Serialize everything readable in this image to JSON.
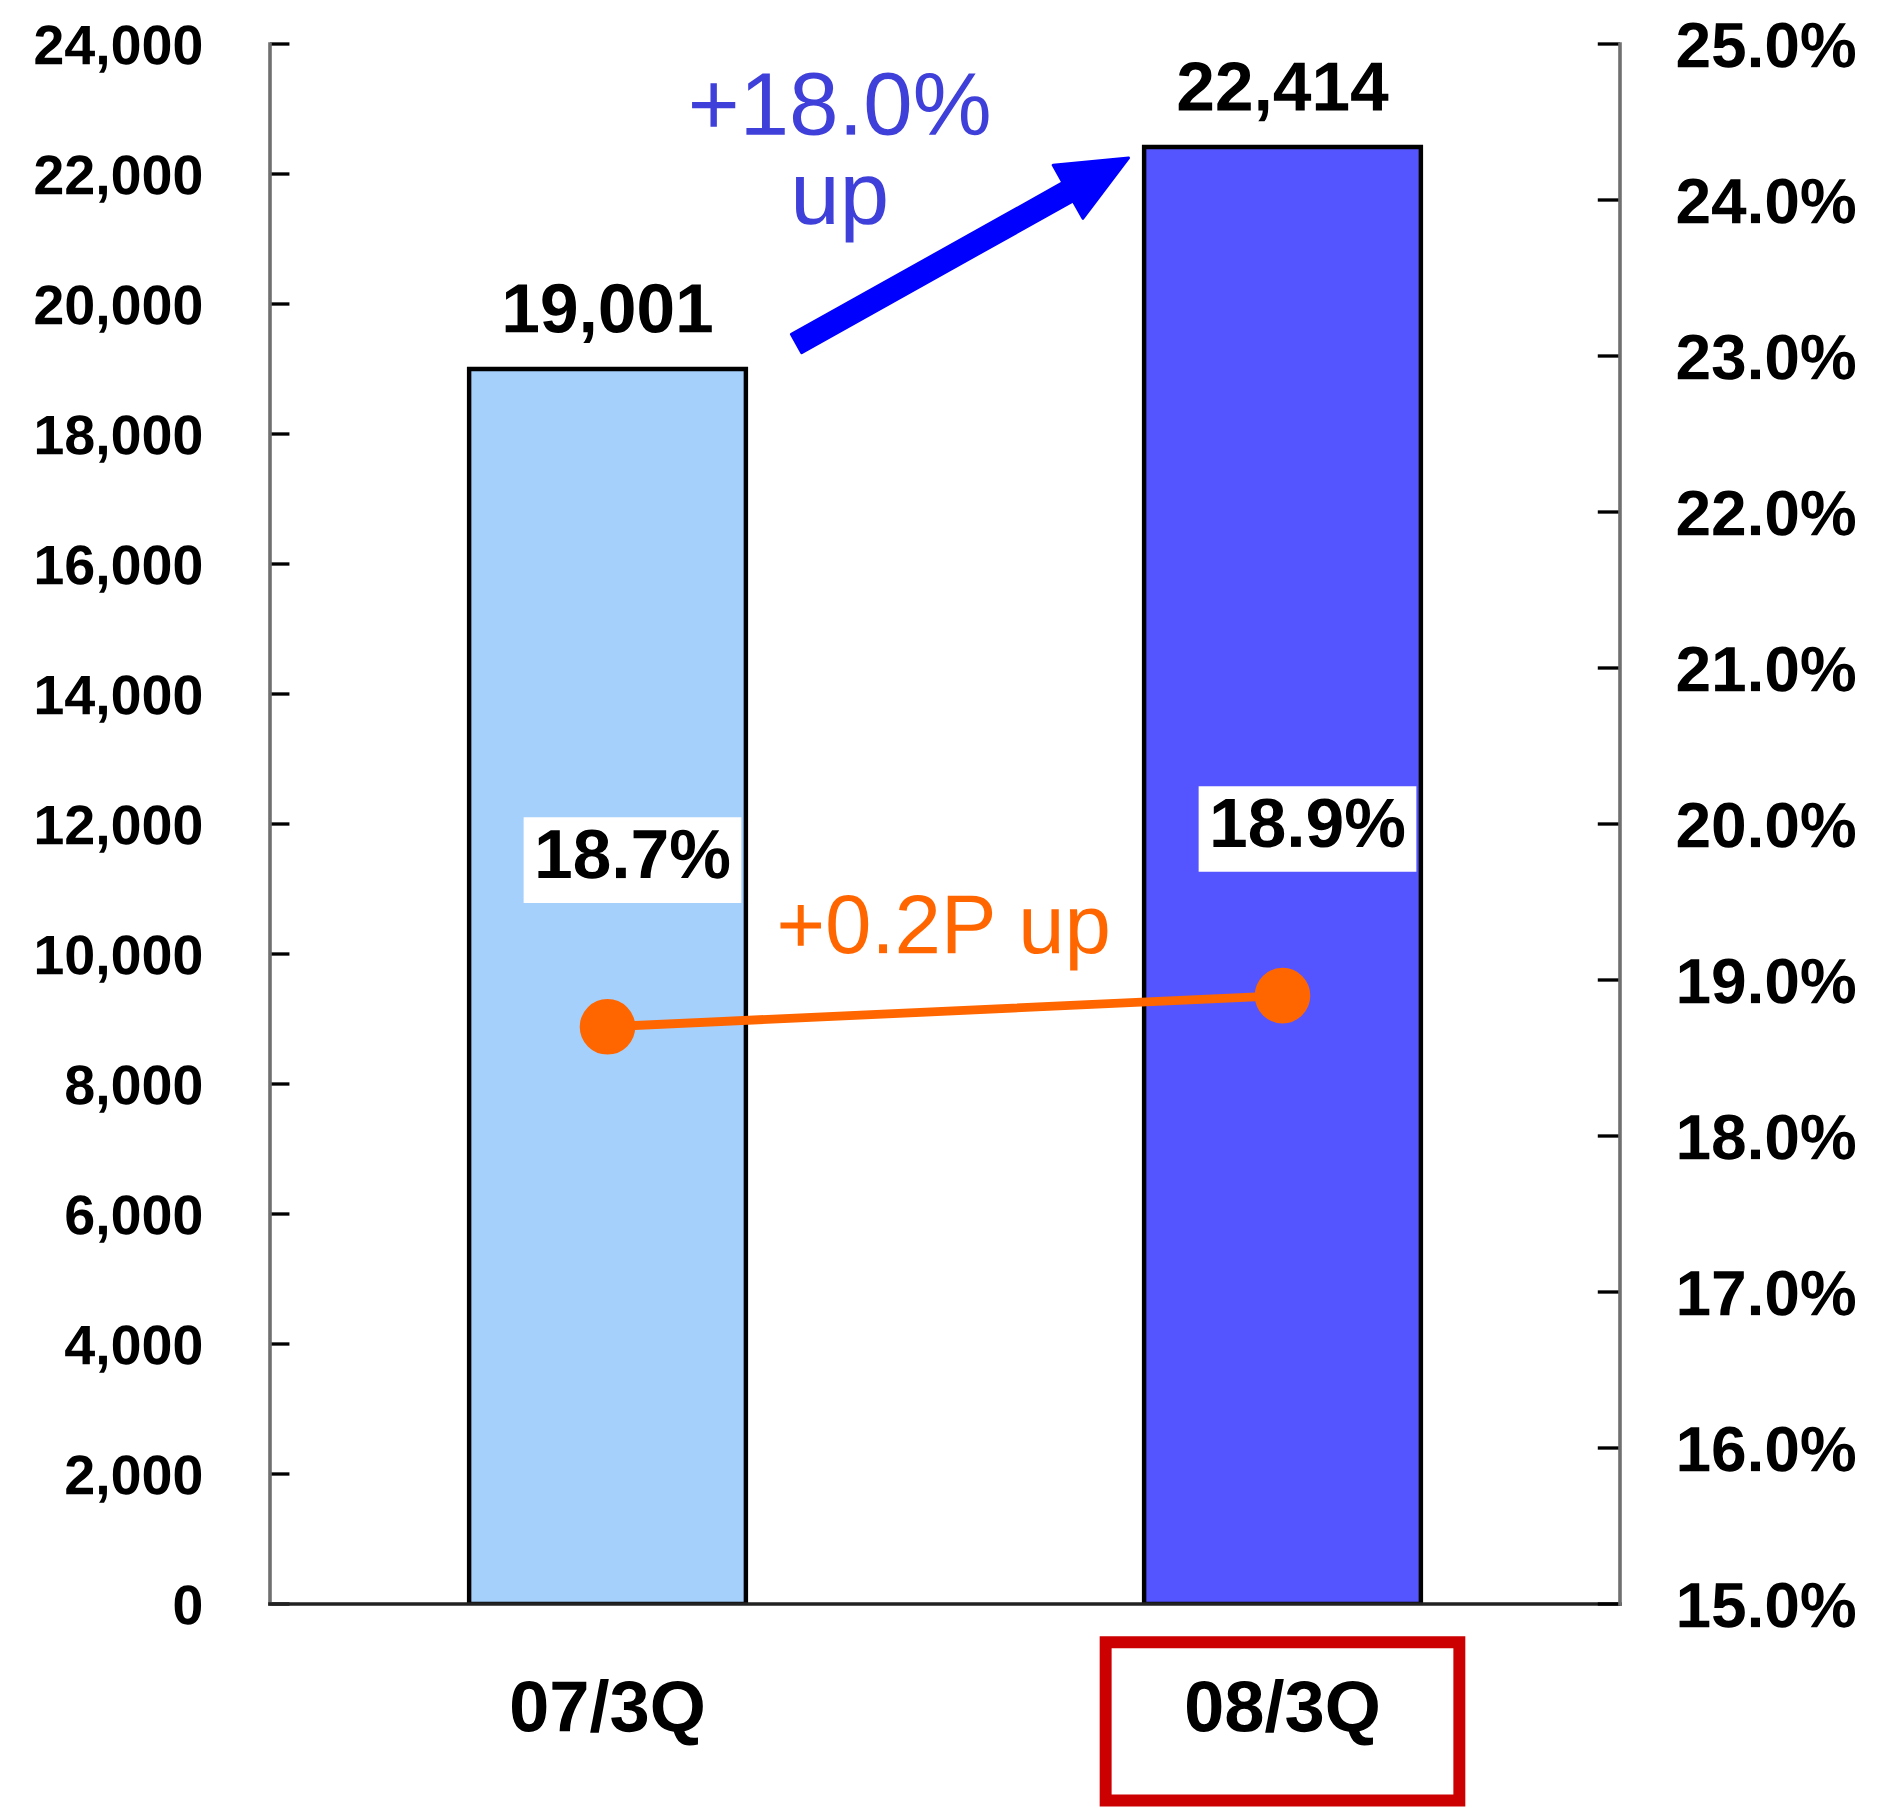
{
  "chart_data": {
    "type": "bar",
    "categories": [
      "07/3Q",
      "08/3Q"
    ],
    "series": [
      {
        "colors": [
          "#a6d0fc",
          "#5555ff"
        ],
        "values": [
          19001,
          22414
        ],
        "value_labels": [
          "19,001",
          "22,414"
        ]
      },
      {
        "type": "line",
        "axis": "y2",
        "color": "#ff6600",
        "marker": "circle",
        "line_style": "solid",
        "values": [
          18.7,
          18.9
        ],
        "value_labels": [
          "18.7%",
          "18.9%"
        ]
      }
    ],
    "ylim": [
      0,
      24000
    ],
    "yticks": [
      {
        "value": 0,
        "label": "0"
      },
      {
        "value": 2000,
        "label": "2,000"
      },
      {
        "value": 4000,
        "label": "4,000"
      },
      {
        "value": 6000,
        "label": "6,000"
      },
      {
        "value": 8000,
        "label": "8,000"
      },
      {
        "value": 10000,
        "label": "10,000"
      },
      {
        "value": 12000,
        "label": "12,000"
      },
      {
        "value": 14000,
        "label": "14,000"
      },
      {
        "value": 16000,
        "label": "16,000"
      },
      {
        "value": 18000,
        "label": "18,000"
      },
      {
        "value": 20000,
        "label": "20,000"
      },
      {
        "value": 22000,
        "label": "22,000"
      },
      {
        "value": 24000,
        "label": "24,000"
      }
    ],
    "y2lim": [
      15,
      25
    ],
    "y2ticks": [
      {
        "value": 15,
        "label": "15.0%"
      },
      {
        "value": 16,
        "label": "16.0%"
      },
      {
        "value": 17,
        "label": "17.0%"
      },
      {
        "value": 18,
        "label": "18.0%"
      },
      {
        "value": 19,
        "label": "19.0%"
      },
      {
        "value": 20,
        "label": "20.0%"
      },
      {
        "value": 21,
        "label": "21.0%"
      },
      {
        "value": 22,
        "label": "22.0%"
      },
      {
        "value": 23,
        "label": "23.0%"
      },
      {
        "value": 24,
        "label": "24.0%"
      },
      {
        "value": 25,
        "label": "25.0%"
      }
    ],
    "annotations": [
      "+18.0%\nup",
      "+0.2P up"
    ],
    "grid": false
  }
}
